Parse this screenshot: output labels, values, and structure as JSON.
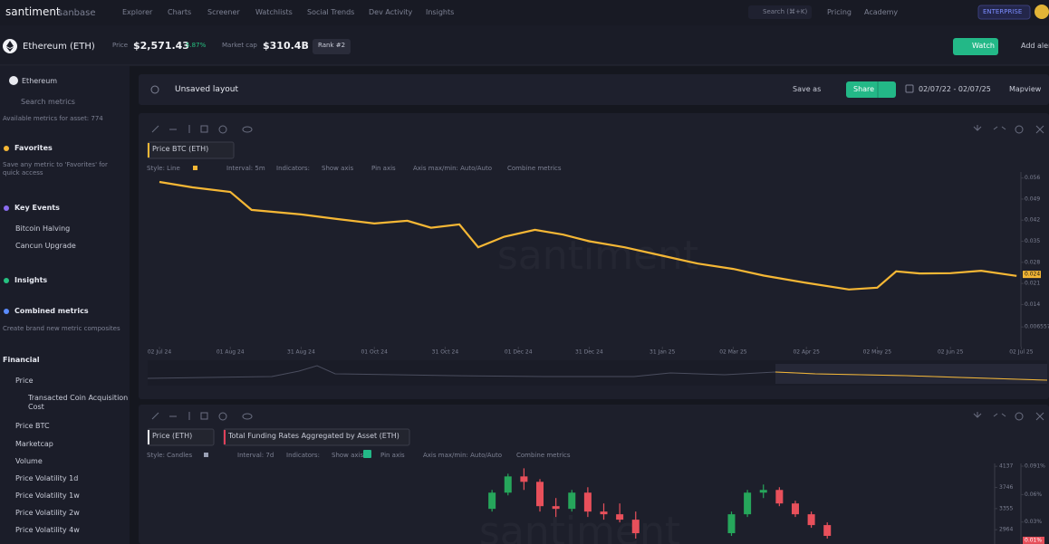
{
  "nav": {
    "brand": "santiment",
    "brand_sub": "sanbase",
    "links": [
      "Explorer",
      "Charts",
      "Screener",
      "Watchlists",
      "Social Trends",
      "Dev Activity",
      "Insights"
    ],
    "search": "Search (⌘+K)",
    "right_links": [
      "Pricing",
      "Academy"
    ],
    "plan": "ENTERPRISE"
  },
  "asset": {
    "name": "Ethereum (ETH)",
    "price_label": "Price",
    "price": "$2,571.43",
    "change": "5.87%",
    "mcap_label": "Market cap",
    "mcap": "$310.4B",
    "rank": "Rank #2",
    "watch": "Watch",
    "add_alert": "Add aler"
  },
  "toolbar": {
    "layout": "Unsaved layout",
    "save_as": "Save as",
    "share": "Share",
    "dates": "02/07/22 - 02/07/25",
    "mapview": "Mapview"
  },
  "sidebar": {
    "asset": "Ethereum",
    "search": "Search metrics",
    "available": "Available metrics for asset: 774",
    "favorites": {
      "title": "Favorites",
      "note": "Save any metric to 'Favorites' for quick access"
    },
    "key_events": {
      "title": "Key Events",
      "items": [
        "Bitcoin Halving",
        "Cancun Upgrade"
      ]
    },
    "insights": {
      "title": "Insights"
    },
    "combined": {
      "title": "Combined metrics",
      "note": "Create brand new metric composites"
    },
    "financial": {
      "title": "Financial",
      "items": [
        "Price",
        "Transacted Coin Acquisition Cost",
        "Price BTC",
        "Marketcap",
        "Volume",
        "Price Volatility 1d",
        "Price Volatility 1w",
        "Price Volatility 2w",
        "Price Volatility 4w"
      ]
    }
  },
  "chart1": {
    "type": "line",
    "legend": "Price BTC (ETH)",
    "watermark": "santiment",
    "color": "#f5b735",
    "settings": [
      "Style: Line",
      "Interval: 5m",
      "Indicators:",
      "Show axis",
      "Pin axis",
      "Axis max/min: Auto/Auto",
      "Combine metrics"
    ],
    "x": [
      "2024-07-02",
      "2024-07-16",
      "2024-08-01",
      "2024-08-10",
      "2024-08-31",
      "2024-09-15",
      "2024-10-01",
      "2024-10-15",
      "2024-10-25",
      "2024-11-06",
      "2024-11-14",
      "2024-11-25",
      "2024-12-08",
      "2024-12-20",
      "2024-12-31",
      "2025-01-15",
      "2025-01-31",
      "2025-02-15",
      "2025-03-02",
      "2025-03-15",
      "2025-04-02",
      "2025-04-20",
      "2025-05-02",
      "2025-05-10",
      "2025-05-20",
      "2025-06-02",
      "2025-06-15",
      "2025-06-30"
    ],
    "values": [
      0.0547,
      0.0529,
      0.0514,
      0.0454,
      0.0439,
      0.0424,
      0.0409,
      0.0418,
      0.0395,
      0.0406,
      0.033,
      0.0365,
      0.0388,
      0.0372,
      0.035,
      0.033,
      0.0302,
      0.0276,
      0.0258,
      0.0236,
      0.0212,
      0.019,
      0.0196,
      0.025,
      0.0243,
      0.0244,
      0.0252,
      0.0235
    ],
    "xlim": [
      "2024-06-27",
      "2025-07-03"
    ],
    "xticks": [
      {
        "value": "2024-07-02",
        "label": "02 Jul 24"
      },
      {
        "value": "2024-08-01",
        "label": "01 Aug 24"
      },
      {
        "value": "2024-08-31",
        "label": "31 Aug 24"
      },
      {
        "value": "2024-10-01",
        "label": "01 Oct 24"
      },
      {
        "value": "2024-10-31",
        "label": "31 Oct 24"
      },
      {
        "value": "2024-12-01",
        "label": "01 Dec 24"
      },
      {
        "value": "2024-12-31",
        "label": "31 Dec 24"
      },
      {
        "value": "2025-01-31",
        "label": "31 Jan 25"
      },
      {
        "value": "2025-03-02",
        "label": "02 Mar 25"
      },
      {
        "value": "2025-04-02",
        "label": "02 Apr 25"
      },
      {
        "value": "2025-05-02",
        "label": "02 May 25"
      },
      {
        "value": "2025-06-02",
        "label": "02 Jun 25"
      },
      {
        "value": "2025-07-02",
        "label": "02 Jul 25"
      }
    ],
    "ylim": [
      0,
      0.058
    ],
    "yticks": [
      0.056,
      0.049,
      0.042,
      0.035,
      0.028,
      0.021,
      0.014,
      0.0065577
    ],
    "last_value": 0.024
  },
  "chart2": {
    "type": "candlestick",
    "legend": [
      "Price (ETH)",
      "Total Funding Rates Aggregated by Asset (ETH)"
    ],
    "watermark": "santiment",
    "up_color": "#26a65b",
    "down_color": "#e8505b",
    "settings": [
      "Style: Candles",
      "Interval: 7d",
      "Indicators:",
      "Show axis",
      "Pin axis",
      "Axis max/min: Auto/Auto",
      "Combine metrics"
    ],
    "x": [
      "2024-11-25",
      "2024-12-02",
      "2024-12-09",
      "2024-12-16",
      "2024-12-23",
      "2024-12-30",
      "2025-01-06",
      "2025-01-13",
      "2025-01-20",
      "2025-01-27",
      "2025-03-10",
      "2025-03-17",
      "2025-03-24",
      "2025-03-31",
      "2025-04-07",
      "2025-04-14",
      "2025-04-21"
    ],
    "open": [
      3350,
      3650,
      3950,
      3850,
      3400,
      3350,
      3650,
      3300,
      3250,
      3150,
      2900,
      3250,
      3650,
      3700,
      3450,
      3250,
      3050
    ],
    "high": [
      3700,
      4000,
      4100,
      3900,
      3550,
      3700,
      3750,
      3450,
      3450,
      3300,
      3300,
      3700,
      3800,
      3750,
      3500,
      3300,
      3100
    ],
    "low": [
      3300,
      3600,
      3700,
      3300,
      3200,
      3300,
      3200,
      3150,
      3100,
      2800,
      2850,
      3200,
      3550,
      3400,
      3200,
      3000,
      2800
    ],
    "close": [
      3650,
      3950,
      3850,
      3400,
      3350,
      3650,
      3300,
      3250,
      3150,
      2900,
      3250,
      3650,
      3700,
      3450,
      3250,
      3050,
      2850
    ],
    "xlim": [
      "2024-06-27",
      "2025-07-03"
    ],
    "ylim": [
      2700,
      4190
    ],
    "yticks": [
      2964,
      3355,
      3746,
      4137
    ],
    "y2lim": [
      0.006,
      0.094
    ],
    "y2ticks": [
      {
        "value": 0.091,
        "label": "0.091%"
      },
      {
        "value": 0.06,
        "label": "0.06%"
      },
      {
        "value": 0.03,
        "label": "0.03%"
      }
    ],
    "y2_last": {
      "value": 0.01,
      "label": "0.01%"
    }
  }
}
